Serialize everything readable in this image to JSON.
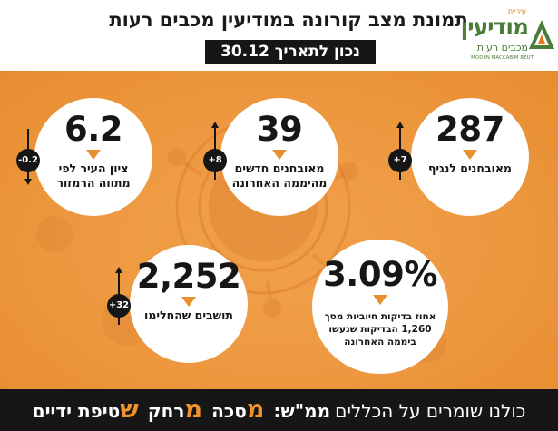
{
  "header": {
    "title": "תמונת מצב קורונה במודיעין מכבים רעות",
    "date": "נכון לתאריך 30.12"
  },
  "logo": {
    "small": "עיריית",
    "main": "מודיעין",
    "sub": "מכבים רעות",
    "en": "MODIIN MACCABIM REUT"
  },
  "cards": {
    "infected": {
      "value": "287",
      "label": "מאובחנים לנגיף",
      "change": "+7",
      "direction": "up"
    },
    "new_cases": {
      "value": "39",
      "label": "מאובחנים חדשים מהיממה האחרונה",
      "change": "+8",
      "direction": "up"
    },
    "city_score": {
      "value": "6.2",
      "label": "ציון העיר לפי מתווה הרמזור",
      "change": "-0.2",
      "direction": "down"
    },
    "positive_rate": {
      "value": "3.09%",
      "label": "אחוז בדיקות חיוביות מסך 1,260 הבדיקות שנעשו ביממה האחרונה"
    },
    "recovered": {
      "value": "2,252",
      "label": "תושבים שהחלימו",
      "change": "+32",
      "direction": "up"
    }
  },
  "footer": {
    "intro": "כולנו שומרים על הכללים",
    "mamash": "ממ\"ש:",
    "m1_letter": "מ",
    "m1_rest": "סכה",
    "m2_letter": "מ",
    "m2_rest": "רחק",
    "s_letter": "ש",
    "s_rest": "טיפת ידיים"
  },
  "colors": {
    "accent": "#f0932e",
    "background_orange": "#ee9a42",
    "dark": "#161616",
    "logo_green": "#4a7d3a"
  }
}
